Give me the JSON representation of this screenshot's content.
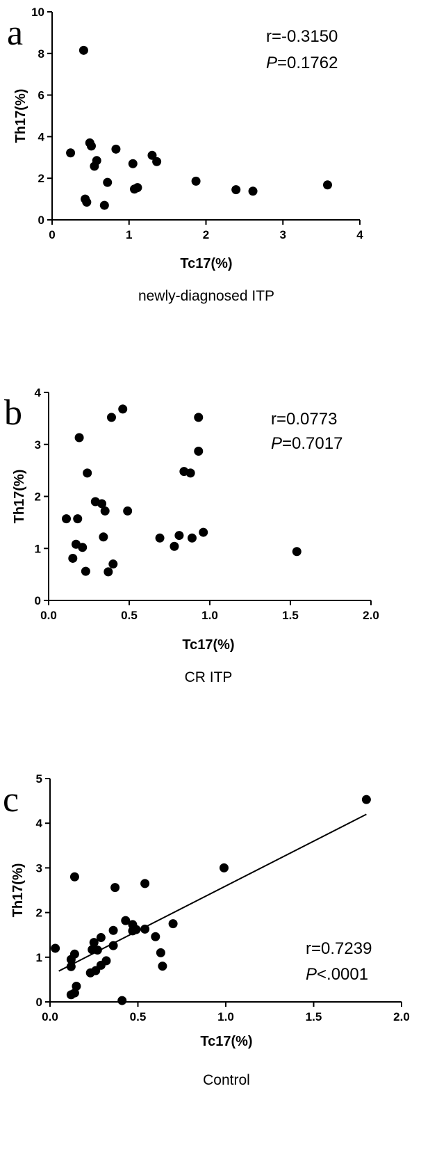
{
  "chart_data": [
    {
      "type": "scatter",
      "panel_label": "a",
      "caption": "newly-diagnosed ITP",
      "xlabel": "Tc17(%)",
      "ylabel": "Th17(%)",
      "xlim": [
        0,
        4
      ],
      "ylim": [
        0,
        10
      ],
      "xticks": [
        0,
        1,
        2,
        3,
        4
      ],
      "yticks": [
        0,
        2,
        4,
        6,
        8,
        10
      ],
      "xtick_labels": [
        "0",
        "1",
        "2",
        "3",
        "4"
      ],
      "ytick_labels": [
        "0",
        "2",
        "4",
        "6",
        "8",
        "10"
      ],
      "stats": {
        "r": "r=-0.3150",
        "p_prefix": "P",
        "p_value": "=0.1762"
      },
      "grid": false,
      "points": [
        {
          "x": 0.41,
          "y": 8.15
        },
        {
          "x": 0.24,
          "y": 3.22
        },
        {
          "x": 0.49,
          "y": 3.7
        },
        {
          "x": 0.51,
          "y": 3.55
        },
        {
          "x": 0.83,
          "y": 3.4
        },
        {
          "x": 1.3,
          "y": 3.1
        },
        {
          "x": 1.36,
          "y": 2.8
        },
        {
          "x": 0.58,
          "y": 2.85
        },
        {
          "x": 0.55,
          "y": 2.58
        },
        {
          "x": 1.05,
          "y": 2.7
        },
        {
          "x": 0.72,
          "y": 1.8
        },
        {
          "x": 1.07,
          "y": 1.48
        },
        {
          "x": 1.11,
          "y": 1.55
        },
        {
          "x": 0.43,
          "y": 1.0
        },
        {
          "x": 0.45,
          "y": 0.85
        },
        {
          "x": 0.68,
          "y": 0.7
        },
        {
          "x": 1.87,
          "y": 1.86
        },
        {
          "x": 2.39,
          "y": 1.45
        },
        {
          "x": 2.61,
          "y": 1.38
        },
        {
          "x": 3.58,
          "y": 1.68
        }
      ]
    },
    {
      "type": "scatter",
      "panel_label": "b",
      "caption": "CR ITP",
      "xlabel": "Tc17(%)",
      "ylabel": "Th17(%)",
      "xlim": [
        0,
        2
      ],
      "ylim": [
        0,
        4
      ],
      "xticks": [
        0,
        0.5,
        1,
        1.5,
        2
      ],
      "yticks": [
        0,
        1,
        2,
        3,
        4
      ],
      "xtick_labels": [
        "0.0",
        "0.5",
        "1.0",
        "1.5",
        "2.0"
      ],
      "ytick_labels": [
        "0",
        "1",
        "2",
        "3",
        "4"
      ],
      "stats": {
        "r": "r=0.0773",
        "p_prefix": "P",
        "p_value": "=0.7017"
      },
      "grid": false,
      "points": [
        {
          "x": 0.46,
          "y": 3.68
        },
        {
          "x": 0.39,
          "y": 3.52
        },
        {
          "x": 0.19,
          "y": 3.13
        },
        {
          "x": 0.93,
          "y": 3.52
        },
        {
          "x": 0.93,
          "y": 2.87
        },
        {
          "x": 0.84,
          "y": 2.48
        },
        {
          "x": 0.88,
          "y": 2.45
        },
        {
          "x": 0.24,
          "y": 2.45
        },
        {
          "x": 0.29,
          "y": 1.9
        },
        {
          "x": 0.33,
          "y": 1.86
        },
        {
          "x": 0.35,
          "y": 1.72
        },
        {
          "x": 0.49,
          "y": 1.72
        },
        {
          "x": 0.11,
          "y": 1.57
        },
        {
          "x": 0.18,
          "y": 1.57
        },
        {
          "x": 0.34,
          "y": 1.22
        },
        {
          "x": 0.69,
          "y": 1.2
        },
        {
          "x": 0.81,
          "y": 1.25
        },
        {
          "x": 0.89,
          "y": 1.2
        },
        {
          "x": 0.96,
          "y": 1.31
        },
        {
          "x": 0.78,
          "y": 1.04
        },
        {
          "x": 0.17,
          "y": 1.08
        },
        {
          "x": 0.21,
          "y": 1.02
        },
        {
          "x": 0.15,
          "y": 0.81
        },
        {
          "x": 0.4,
          "y": 0.7
        },
        {
          "x": 0.23,
          "y": 0.56
        },
        {
          "x": 0.37,
          "y": 0.55
        },
        {
          "x": 1.54,
          "y": 0.94
        }
      ]
    },
    {
      "type": "scatter",
      "panel_label": "c",
      "caption": "Control",
      "xlabel": "Tc17(%)",
      "ylabel": "Th17(%)",
      "xlim": [
        0,
        2
      ],
      "ylim": [
        0,
        5
      ],
      "xticks": [
        0,
        0.5,
        1,
        1.5,
        2
      ],
      "yticks": [
        0,
        1,
        2,
        3,
        4,
        5
      ],
      "xtick_labels": [
        "0.0",
        "0.5",
        "1.0",
        "1.5",
        "2.0"
      ],
      "ytick_labels": [
        "0",
        "1",
        "2",
        "3",
        "4",
        "5"
      ],
      "stats": {
        "r": "r=0.7239",
        "p_prefix": "P",
        "p_value": "<.0001"
      },
      "grid": false,
      "regression_line": {
        "x": [
          0.05,
          1.8
        ],
        "y": [
          0.69,
          4.2
        ]
      },
      "points": [
        {
          "x": 1.8,
          "y": 4.53
        },
        {
          "x": 0.99,
          "y": 3.0
        },
        {
          "x": 0.14,
          "y": 2.8
        },
        {
          "x": 0.54,
          "y": 2.65
        },
        {
          "x": 0.37,
          "y": 2.56
        },
        {
          "x": 0.43,
          "y": 1.82
        },
        {
          "x": 0.7,
          "y": 1.75
        },
        {
          "x": 0.47,
          "y": 1.73
        },
        {
          "x": 0.49,
          "y": 1.62
        },
        {
          "x": 0.36,
          "y": 1.6
        },
        {
          "x": 0.47,
          "y": 1.59
        },
        {
          "x": 0.54,
          "y": 1.63
        },
        {
          "x": 0.6,
          "y": 1.46
        },
        {
          "x": 0.29,
          "y": 1.44
        },
        {
          "x": 0.03,
          "y": 1.2
        },
        {
          "x": 0.25,
          "y": 1.33
        },
        {
          "x": 0.36,
          "y": 1.26
        },
        {
          "x": 0.27,
          "y": 1.16
        },
        {
          "x": 0.24,
          "y": 1.17
        },
        {
          "x": 0.14,
          "y": 1.07
        },
        {
          "x": 0.12,
          "y": 0.95
        },
        {
          "x": 0.63,
          "y": 1.1
        },
        {
          "x": 0.32,
          "y": 0.92
        },
        {
          "x": 0.29,
          "y": 0.82
        },
        {
          "x": 0.64,
          "y": 0.8
        },
        {
          "x": 0.12,
          "y": 0.79
        },
        {
          "x": 0.26,
          "y": 0.7
        },
        {
          "x": 0.23,
          "y": 0.65
        },
        {
          "x": 0.15,
          "y": 0.35
        },
        {
          "x": 0.14,
          "y": 0.2
        },
        {
          "x": 0.12,
          "y": 0.16
        },
        {
          "x": 0.41,
          "y": 0.03
        }
      ]
    }
  ]
}
